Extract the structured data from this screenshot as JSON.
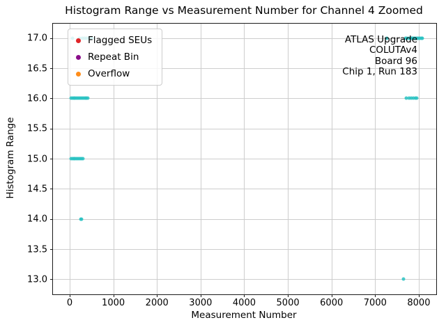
{
  "legend": {
    "items": [
      {
        "label": "Flagged SEUs",
        "color": "#e02528"
      },
      {
        "label": "Repeat Bin",
        "color": "#8a0d8a"
      },
      {
        "label": "Overflow",
        "color": "#ff8d1a"
      }
    ]
  },
  "annotation": {
    "lines": [
      "ATLAS Upgrade",
      "COLUTAv4",
      "Board 96",
      "Chip 1, Run 183"
    ]
  },
  "chart_data": {
    "type": "scatter",
    "title": "Histogram Range vs Measurement Number for Channel 4 Zoomed",
    "xlabel": "Measurement Number",
    "ylabel": "Histogram Range",
    "xlim": [
      -383,
      8400
    ],
    "ylim": [
      12.75,
      17.24
    ],
    "xticks": [
      0,
      1000,
      2000,
      3000,
      4000,
      5000,
      6000,
      7000,
      8000
    ],
    "yticks": [
      13.0,
      13.5,
      14.0,
      14.5,
      15.0,
      15.5,
      16.0,
      16.5,
      17.0
    ],
    "grid": true,
    "legend_position": "upper left",
    "point_color": "#29c2c2",
    "series": [
      {
        "name": "Histogram Range",
        "y": 17.0,
        "x": [
          64,
          230,
          280,
          330,
          380,
          430,
          480,
          510,
          7265,
          7690,
          7730,
          7770,
          7820,
          7850,
          7880,
          7910,
          7940,
          7970,
          8000,
          8030,
          8060,
          8080
        ]
      },
      {
        "name": "Histogram Range",
        "y": 16.0,
        "x": [
          30,
          60,
          90,
          120,
          150,
          180,
          210,
          240,
          270,
          300,
          330,
          360,
          390,
          415,
          7720,
          7770,
          7820,
          7870,
          7920,
          7960
        ]
      },
      {
        "name": "Histogram Range",
        "y": 15.0,
        "x": [
          30,
          60,
          90,
          120,
          150,
          180,
          210,
          240,
          270,
          300
        ]
      },
      {
        "name": "Histogram Range",
        "y": 14.0,
        "x": [
          250,
          270
        ]
      },
      {
        "name": "Histogram Range",
        "y": 13.0,
        "x": [
          7645
        ]
      }
    ],
    "legend_only_series": [
      "Flagged SEUs",
      "Repeat Bin",
      "Overflow"
    ]
  }
}
